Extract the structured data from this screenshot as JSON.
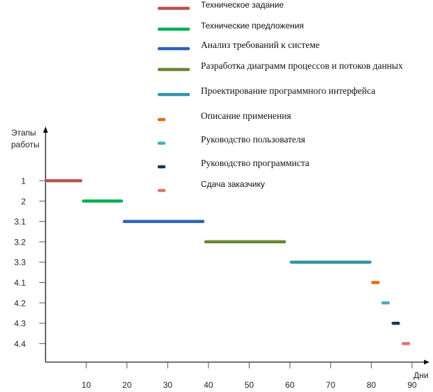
{
  "chart_data": {
    "type": "bar",
    "subtype": "gantt",
    "title": "",
    "xlabel": "Дни",
    "ylabel": "Этапы работы",
    "ylabel_lines": [
      "Этапы",
      "работы"
    ],
    "xlim": [
      0,
      92
    ],
    "xticks": [
      10,
      20,
      30,
      40,
      50,
      60,
      70,
      80,
      90
    ],
    "categories": [
      "1",
      "2",
      "3.1",
      "3.2",
      "3.3",
      "4.1",
      "4.2",
      "4.3",
      "4.4"
    ],
    "legend_position": "top",
    "series": [
      {
        "name": "Техническое задание",
        "stage": "1",
        "start": 0,
        "end": 9,
        "color": "#c0504d",
        "font": "sans"
      },
      {
        "name": "Технические предложения",
        "stage": "2",
        "start": 9,
        "end": 19,
        "color": "#00b050",
        "font": "sans"
      },
      {
        "name": "Анализ требований к системе",
        "stage": "3.1",
        "start": 19,
        "end": 39,
        "color": "#2e64b4",
        "font": "serif"
      },
      {
        "name": "Разработка диаграмм процессов и потоков данных",
        "stage": "3.2",
        "start": 39,
        "end": 59,
        "color": "#6b8634",
        "font": "serif"
      },
      {
        "name": "Проектирование программного интерфейса",
        "stage": "3.3",
        "start": 60,
        "end": 80,
        "color": "#3094ad",
        "font": "serif"
      },
      {
        "name": "Описание применения",
        "stage": "4.1",
        "start": 80,
        "end": 82,
        "color": "#e36c0a",
        "font": "serif"
      },
      {
        "name": "Руководство пользователя",
        "stage": "4.2",
        "start": 82.5,
        "end": 84.5,
        "color": "#4bacc6",
        "font": "serif"
      },
      {
        "name": "Руководство программиста",
        "stage": "4.3",
        "start": 85,
        "end": 87,
        "color": "#17365d",
        "font": "serif"
      },
      {
        "name": "Сдача заказчику",
        "stage": "4.4",
        "start": 87.5,
        "end": 89.5,
        "color": "#d9756f",
        "font": "sans"
      }
    ]
  }
}
